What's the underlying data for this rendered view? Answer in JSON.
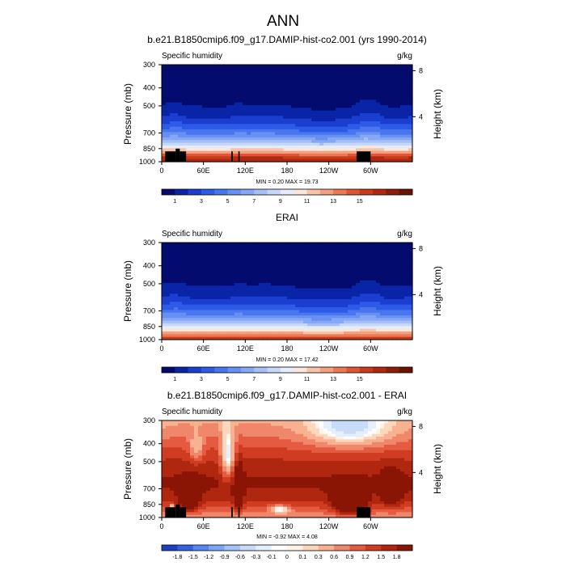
{
  "figure": {
    "title": "ANN"
  },
  "colorbar_labels_abs": [
    "1",
    "3",
    "5",
    "7",
    "9",
    "11",
    "13",
    "15"
  ],
  "colorbar_labels_diff": [
    "-1.8",
    "-1.5",
    "-1.2",
    "-0.9",
    "-0.6",
    "-0.3",
    "-0.1",
    "0",
    "0.1",
    "0.3",
    "0.6",
    "0.9",
    "1.2",
    "1.5",
    "1.8"
  ],
  "colors": {
    "abs_palette": [
      "#040b6e",
      "#0a24a8",
      "#1a3fd0",
      "#2e5ae8",
      "#4876ef",
      "#6690f2",
      "#86a8f4",
      "#a6c0f7",
      "#c6d8fa",
      "#e4ecfd",
      "#fbe6da",
      "#f8c4a8",
      "#f3a07e",
      "#ea7a55",
      "#e05634",
      "#cc3a1c",
      "#b02810",
      "#8e1c06",
      "#6b1200"
    ],
    "diff_palette": [
      "#1f3fbf",
      "#3563df",
      "#5687f0",
      "#7ca6f5",
      "#a3c3f8",
      "#c8dbfb",
      "#e5eefd",
      "#ffffff",
      "#fff3e6",
      "#fdd7bc",
      "#f8b191",
      "#f0866a",
      "#e45b41",
      "#cf3c22",
      "#b02710",
      "#8b1504"
    ],
    "topography": "#000000"
  },
  "chart_data": [
    {
      "type": "heatmap",
      "title": "b.e21.B1850cmip6.f09_g17.DAMIP-hist-co2.001 (yrs 1990-2014)",
      "subtitle_left": "Specific humidity",
      "subtitle_right": "g/kg",
      "xlabel": "",
      "ylabel": "Pressure (mb)",
      "ylabel_right": "Height (km)",
      "x_ticks": [
        "0",
        "60E",
        "120E",
        "180",
        "120W",
        "60W"
      ],
      "y_ticks": [
        "300",
        "400",
        "500",
        "700",
        "850",
        "1000"
      ],
      "y_ticks_right": [
        "8",
        "4"
      ],
      "xlim": [
        0,
        360
      ],
      "ylim": [
        1000,
        300
      ],
      "stats": "MIN =   0.20  MAX =  19.73",
      "min": 0.2,
      "max": 19.73,
      "contour_levels": [
        1,
        2,
        3,
        4,
        5,
        6,
        7,
        8,
        9,
        10,
        11,
        12,
        13,
        14,
        15,
        16
      ],
      "colorbar_labels": [
        "1",
        "3",
        "5",
        "7",
        "9",
        "11",
        "13",
        "15"
      ]
    },
    {
      "type": "heatmap",
      "title": "ERAI",
      "subtitle_left": "Specific humidity",
      "subtitle_right": "g/kg",
      "xlabel": "",
      "ylabel": "Pressure (mb)",
      "ylabel_right": "Height (km)",
      "x_ticks": [
        "0",
        "60E",
        "120E",
        "180",
        "120W",
        "60W"
      ],
      "y_ticks": [
        "300",
        "400",
        "500",
        "700",
        "850",
        "1000"
      ],
      "y_ticks_right": [
        "8",
        "4"
      ],
      "xlim": [
        0,
        360
      ],
      "ylim": [
        1000,
        300
      ],
      "stats": "MIN =   0.20  MAX =  17.42",
      "min": 0.2,
      "max": 17.42,
      "contour_levels": [
        1,
        2,
        3,
        4,
        5,
        6,
        7,
        8,
        9,
        10,
        11,
        12,
        13,
        14,
        15,
        16
      ],
      "colorbar_labels": [
        "1",
        "3",
        "5",
        "7",
        "9",
        "11",
        "13",
        "15"
      ]
    },
    {
      "type": "heatmap",
      "title": "b.e21.B1850cmip6.f09_g17.DAMIP-hist-co2.001 - ERAI",
      "subtitle_left": "Specific humidity",
      "subtitle_right": "g/kg",
      "xlabel": "",
      "ylabel": "Pressure (mb)",
      "ylabel_right": "Height (km)",
      "x_ticks": [
        "0",
        "60E",
        "120E",
        "180",
        "120W",
        "60W"
      ],
      "y_ticks": [
        "300",
        "400",
        "500",
        "700",
        "850",
        "1000"
      ],
      "y_ticks_right": [
        "8",
        "4"
      ],
      "xlim": [
        0,
        360
      ],
      "ylim": [
        1000,
        300
      ],
      "stats": "MIN =  -0.92  MAX =   4.08",
      "min": -0.92,
      "max": 4.08,
      "contour_levels": [
        -1.8,
        -1.5,
        -1.2,
        -0.9,
        -0.6,
        -0.3,
        -0.1,
        0,
        0.1,
        0.3,
        0.6,
        0.9,
        1.2,
        1.5,
        1.8
      ],
      "colorbar_labels": [
        "-1.8",
        "-1.5",
        "-1.2",
        "-0.9",
        "-0.6",
        "-0.3",
        "-0.1",
        "0",
        "0.1",
        "0.3",
        "0.6",
        "0.9",
        "1.2",
        "1.5",
        "1.8"
      ]
    }
  ]
}
